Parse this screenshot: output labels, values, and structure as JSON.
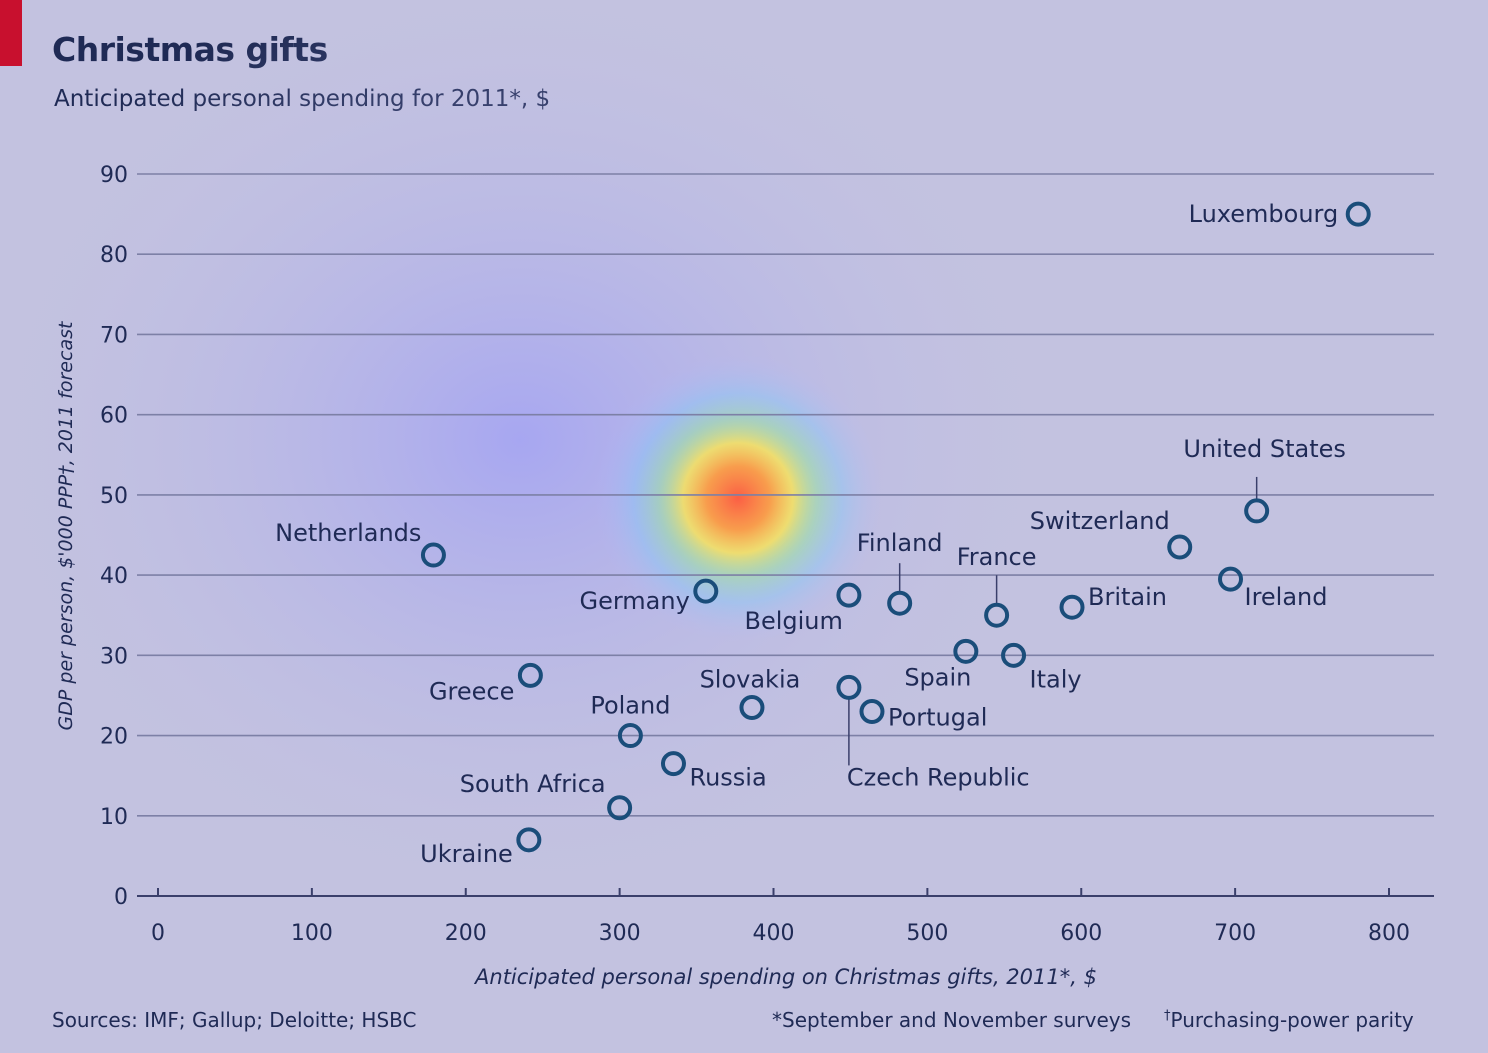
{
  "title": "Christmas gifts",
  "subtitle": "Anticipated personal spending for 2011*, $",
  "footer": {
    "sources": "Sources: IMF; Gallup; Deloitte; HSBC",
    "note1": "*September and November surveys",
    "note2_mark": "†",
    "note2": "Purchasing-power parity"
  },
  "colors": {
    "background": "#c3c2e0",
    "accent": "#c8102e",
    "marker": "#1a4d7a",
    "text": "#1f2a55",
    "gridline": "#7d80a6"
  },
  "chart_data": {
    "type": "scatter",
    "xlabel": "Anticipated personal spending on Christmas gifts, 2011*, $",
    "ylabel": "GDP per person, $'000 PPP†, 2011 forecast",
    "xlim": [
      0,
      800
    ],
    "ylim": [
      0,
      90
    ],
    "xticks": [
      0,
      100,
      200,
      300,
      400,
      500,
      600,
      700,
      800
    ],
    "yticks": [
      0,
      10,
      20,
      30,
      40,
      50,
      60,
      70,
      80,
      90
    ],
    "grid": "horizontal",
    "points": [
      {
        "label": "Luxembourg",
        "x": 780,
        "y": 85
      },
      {
        "label": "United States",
        "x": 714,
        "y": 48
      },
      {
        "label": "Netherlands",
        "x": 179,
        "y": 42.5
      },
      {
        "label": "Switzerland",
        "x": 664,
        "y": 43.5
      },
      {
        "label": "Ireland",
        "x": 697,
        "y": 39.5
      },
      {
        "label": "Finland",
        "x": 482,
        "y": 36.5
      },
      {
        "label": "France",
        "x": 545,
        "y": 35
      },
      {
        "label": "Britain",
        "x": 594,
        "y": 36
      },
      {
        "label": "Germany",
        "x": 356,
        "y": 38
      },
      {
        "label": "Belgium",
        "x": 449,
        "y": 37.5
      },
      {
        "label": "Spain",
        "x": 525,
        "y": 30.5
      },
      {
        "label": "Italy",
        "x": 556,
        "y": 30
      },
      {
        "label": "Greece",
        "x": 242,
        "y": 27.5
      },
      {
        "label": "Slovakia",
        "x": 386,
        "y": 23.5
      },
      {
        "label": "Czech Republic",
        "x": 449,
        "y": 26
      },
      {
        "label": "Portugal",
        "x": 464,
        "y": 23
      },
      {
        "label": "Poland",
        "x": 307,
        "y": 20
      },
      {
        "label": "Russia",
        "x": 335,
        "y": 16.5
      },
      {
        "label": "South Africa",
        "x": 300,
        "y": 11
      },
      {
        "label": "Ukraine",
        "x": 241,
        "y": 7
      }
    ]
  }
}
